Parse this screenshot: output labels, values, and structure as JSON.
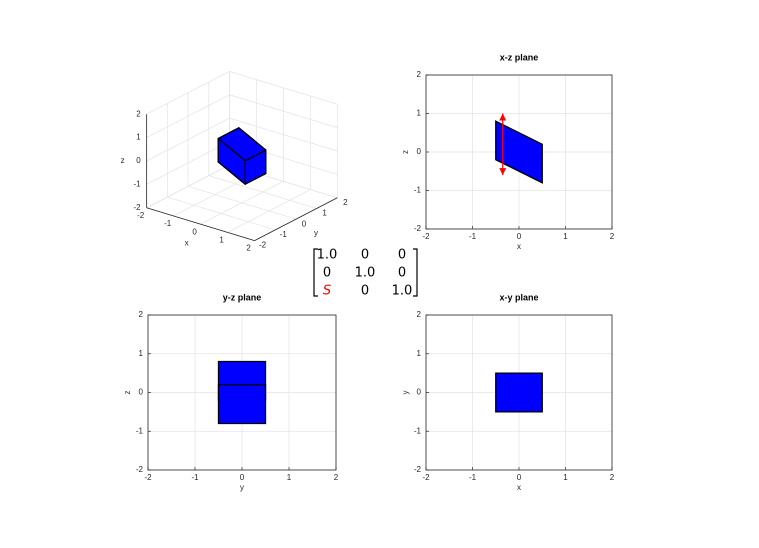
{
  "chart_data": [
    {
      "type": "box3d",
      "xlabel": "x",
      "ylabel": "y",
      "zlabel": "z",
      "xlim": [
        -2,
        2
      ],
      "ylim": [
        -2,
        2
      ],
      "zlim": [
        -2,
        2
      ],
      "xticks": [
        -2,
        -1,
        0,
        1,
        2
      ],
      "yticks": [
        -2,
        -1,
        0,
        1,
        2
      ],
      "zticks": [
        -2,
        -1,
        0,
        1,
        2
      ],
      "grid": true,
      "color": "#0000ff",
      "faces": [
        {
          "x": [
            -0.5,
            -0.5,
            -0.5,
            -0.5
          ],
          "y": [
            -0.5,
            0.5,
            0.5,
            -0.5
          ],
          "z": [
            -0.2,
            -0.2,
            0.8,
            0.8
          ]
        },
        {
          "x": [
            0.5,
            0.5,
            0.5,
            0.5
          ],
          "y": [
            -0.5,
            0.5,
            0.5,
            -0.5
          ],
          "z": [
            -0.8,
            -0.8,
            0.2,
            0.2
          ]
        },
        {
          "x": [
            -0.5,
            0.5,
            0.5,
            -0.5
          ],
          "y": [
            -0.5,
            -0.5,
            -0.5,
            -0.5
          ],
          "z": [
            -0.2,
            -0.8,
            0.2,
            0.8
          ]
        },
        {
          "x": [
            -0.5,
            0.5,
            0.5,
            -0.5
          ],
          "y": [
            0.5,
            0.5,
            0.5,
            0.5
          ],
          "z": [
            -0.2,
            -0.8,
            0.2,
            0.8
          ]
        },
        {
          "x": [
            -0.5,
            0.5,
            0.5,
            -0.5
          ],
          "y": [
            -0.5,
            -0.5,
            0.5,
            0.5
          ],
          "z": [
            -0.2,
            -0.8,
            -0.8,
            -0.2
          ]
        },
        {
          "x": [
            -0.5,
            0.5,
            0.5,
            -0.5
          ],
          "y": [
            -0.5,
            -0.5,
            0.5,
            0.5
          ],
          "z": [
            0.8,
            0.2,
            0.2,
            0.8
          ]
        }
      ]
    },
    {
      "type": "polygon",
      "title": "x-z plane",
      "xlabel": "x",
      "ylabel": "z",
      "xlim": [
        -2,
        2
      ],
      "ylim": [
        -2,
        2
      ],
      "xticks": [
        -2,
        -1,
        0,
        1,
        2
      ],
      "yticks": [
        -2,
        -1,
        0,
        1,
        2
      ],
      "grid": true,
      "color": "#0000ff",
      "polygons": [
        {
          "x": [
            -0.5,
            0.5,
            0.5,
            -0.5
          ],
          "y": [
            0.8,
            0.2,
            -0.8,
            -0.2
          ]
        }
      ],
      "arrows": [
        {
          "x": [
            -0.35,
            -0.35
          ],
          "y": [
            1.0,
            -0.6
          ],
          "color": "#ff0000"
        }
      ]
    },
    {
      "type": "polygon",
      "title": "y-z plane",
      "xlabel": "y",
      "ylabel": "z",
      "xlim": [
        -2,
        2
      ],
      "ylim": [
        -2,
        2
      ],
      "xticks": [
        -2,
        -1,
        0,
        1,
        2
      ],
      "yticks": [
        -2,
        -1,
        0,
        1,
        2
      ],
      "grid": true,
      "color": "#0000ff",
      "polygons": [
        {
          "x": [
            -0.5,
            0.5,
            0.5,
            -0.5
          ],
          "y": [
            -0.2,
            -0.2,
            0.8,
            0.8
          ]
        },
        {
          "x": [
            -0.5,
            0.5,
            0.5,
            -0.5
          ],
          "y": [
            -0.8,
            -0.8,
            0.2,
            0.2
          ]
        }
      ]
    },
    {
      "type": "polygon",
      "title": "x-y plane",
      "xlabel": "x",
      "ylabel": "y",
      "xlim": [
        -2,
        2
      ],
      "ylim": [
        -2,
        2
      ],
      "xticks": [
        -2,
        -1,
        0,
        1,
        2
      ],
      "yticks": [
        -2,
        -1,
        0,
        1,
        2
      ],
      "grid": true,
      "color": "#0000ff",
      "polygons": [
        {
          "x": [
            -0.5,
            0.5,
            0.5,
            -0.5
          ],
          "y": [
            -0.5,
            -0.5,
            0.5,
            0.5
          ]
        }
      ]
    }
  ],
  "matrix": {
    "rows": [
      [
        "1.0",
        "0",
        "0"
      ],
      [
        "0",
        "1.0",
        "0"
      ],
      [
        "S",
        "0",
        "1.0"
      ]
    ],
    "highlight": "S",
    "highlight_color": "#ff0000"
  }
}
